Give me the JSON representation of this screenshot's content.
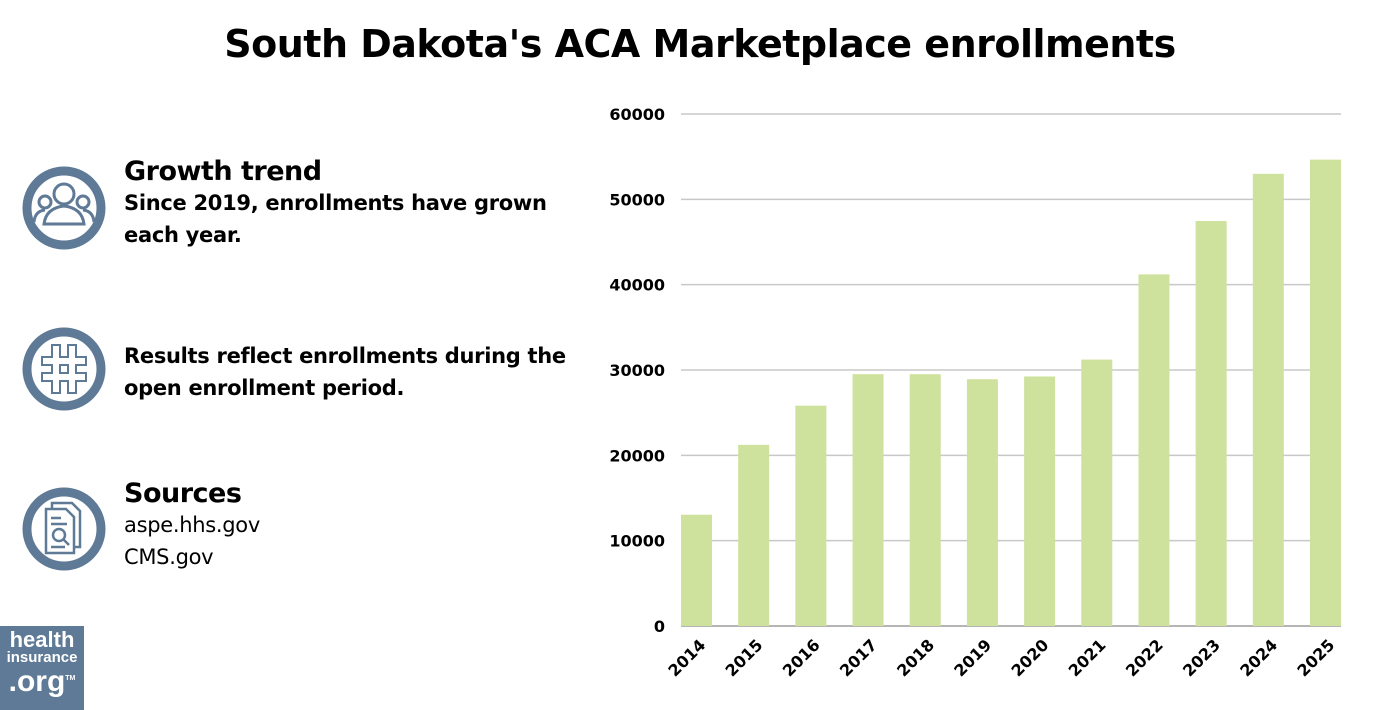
{
  "title": "South Dakota's ACA Marketplace enrollments",
  "info": [
    {
      "icon": "people-icon",
      "heading": "Growth trend",
      "text_lines": [
        "Since 2019, enrollments have grown",
        "each year."
      ]
    },
    {
      "icon": "hashtag-icon",
      "heading": "",
      "text_lines": [
        "Results reflect enrollments during the",
        "open enrollment period."
      ]
    },
    {
      "icon": "document-search-icon",
      "heading": "Sources",
      "text_lines": [
        "aspe.hhs.gov",
        "CMS.gov"
      ]
    }
  ],
  "logo": {
    "lines": [
      "health",
      "insurance",
      ".org"
    ],
    "tm": "TM"
  },
  "colors": {
    "bar": "#cfe29d",
    "icon": "#5e7a96",
    "grid": "#c8c8c8"
  },
  "chart_data": {
    "type": "bar",
    "title": "South Dakota's ACA Marketplace enrollments",
    "categories": [
      "2014",
      "2015",
      "2016",
      "2017",
      "2018",
      "2019",
      "2020",
      "2021",
      "2022",
      "2023",
      "2024",
      "2025"
    ],
    "values": [
      13040,
      21230,
      25820,
      29510,
      29510,
      28920,
      29240,
      31220,
      41200,
      47460,
      52990,
      54650
    ],
    "ylim": [
      0,
      60000
    ],
    "yticks": [
      "0",
      "10000",
      "20000",
      "30000",
      "40000",
      "50000",
      "60000"
    ],
    "grid": true,
    "xlabel": "",
    "ylabel": ""
  }
}
